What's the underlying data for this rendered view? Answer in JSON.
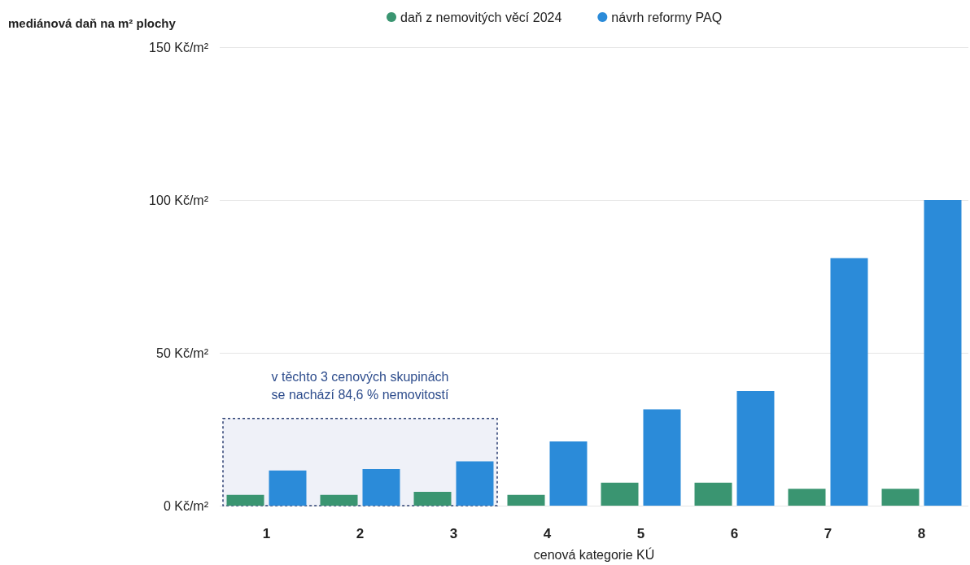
{
  "chart_data": {
    "type": "bar",
    "ylabel": "mediánová daň na m² plochy",
    "xlabel": "cenová kategorie KÚ",
    "categories": [
      "1",
      "2",
      "3",
      "4",
      "5",
      "6",
      "7",
      "8"
    ],
    "series": [
      {
        "name": "daň z nemovitých věcí 2024",
        "color": "#3a9571",
        "values": [
          3.5,
          3.5,
          4.5,
          3.5,
          7.5,
          7.5,
          5.5,
          5.5
        ]
      },
      {
        "name": "návrh reformy PAQ",
        "color": "#2b8bd9",
        "values": [
          11.5,
          12,
          14.5,
          21,
          31.5,
          37.5,
          81,
          100
        ]
      }
    ],
    "ylim": [
      0,
      150
    ],
    "yticks": [
      {
        "value": 0,
        "label": "0 Kč/m²"
      },
      {
        "value": 50,
        "label": "50 Kč/m²"
      },
      {
        "value": 100,
        "label": "100 Kč/m²"
      },
      {
        "value": 150,
        "label": "150 Kč/m²"
      }
    ],
    "grid": "y",
    "legend": "top",
    "bands": [
      {
        "axis": "x",
        "from": "1",
        "to": "3",
        "label": "v těchto 3 cenových skupinách\nse nachází 84,6 % nemovitostí",
        "color": "#eff1f8"
      }
    ]
  }
}
